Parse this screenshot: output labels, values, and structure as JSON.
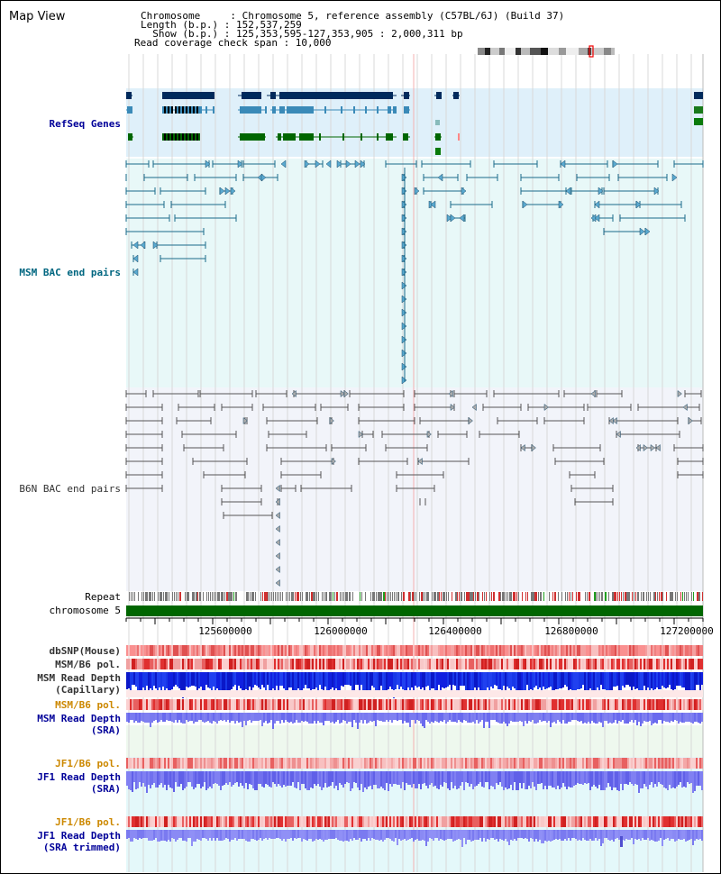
{
  "title": "Map View",
  "info": {
    "line1": "Chromosome     : Chromosome 5, reference assembly (C57BL/6J) (Build 37)",
    "line2": "Length (b.p.) : 152,537,259",
    "line3": "  Show (b.p.) : 125,353,595-127,353,905 : 2,000,311 bp",
    "line4": "Read coverage check span : 10,000"
  },
  "tracks": {
    "refseq": "RefSeq Genes",
    "msm_bac": "MSM BAC end pairs",
    "b6n_bac": "B6N BAC end pairs",
    "repeat": "Repeat",
    "chromosome": "chromosome 5",
    "dbsnp": "dbSNP(Mouse)",
    "msm_pol1": "MSM/B6 pol.",
    "msm_depth_cap": "MSM Read Depth\n(Capillary)",
    "msm_pol2": "MSM/B6 pol.",
    "msm_depth_sra": "MSM Read Depth\n(SRA)",
    "jf1_pol1": "JF1/B6 pol.",
    "jf1_depth_sra": "JF1 Read Depth\n(SRA)",
    "jf1_pol2": "JF1/B6 pol.",
    "jf1_depth_trim": "JF1 Read Depth\n(SRA trimmed)"
  },
  "axis": {
    "ticks": [
      "125600000",
      "126000000",
      "126400000",
      "126800000",
      "127200000"
    ]
  },
  "colors": {
    "refseq_dark": "#002a5c",
    "refseq_mid": "#3a8ab8",
    "refseq_green": "#006600",
    "msm_line": "#1a6a8a",
    "b6n_line": "#555555",
    "chrom_bar": "#006600",
    "label_blue": "#000099",
    "label_teal": "#006680",
    "label_orange": "#cc8800"
  }
}
